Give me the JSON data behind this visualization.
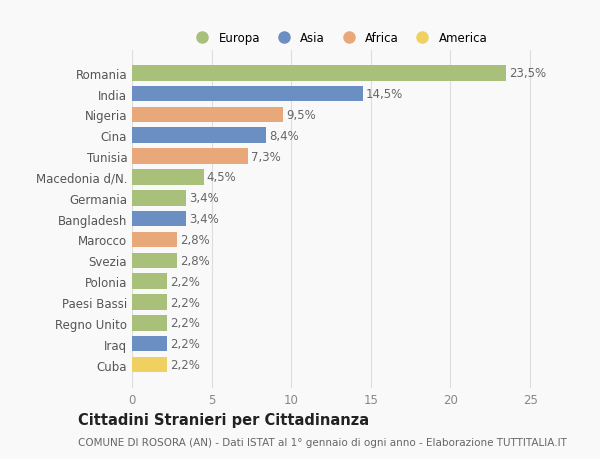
{
  "countries": [
    "Romania",
    "India",
    "Nigeria",
    "Cina",
    "Tunisia",
    "Macedonia d/N.",
    "Germania",
    "Bangladesh",
    "Marocco",
    "Svezia",
    "Polonia",
    "Paesi Bassi",
    "Regno Unito",
    "Iraq",
    "Cuba"
  ],
  "values": [
    23.5,
    14.5,
    9.5,
    8.4,
    7.3,
    4.5,
    3.4,
    3.4,
    2.8,
    2.8,
    2.2,
    2.2,
    2.2,
    2.2,
    2.2
  ],
  "labels": [
    "23,5%",
    "14,5%",
    "9,5%",
    "8,4%",
    "7,3%",
    "4,5%",
    "3,4%",
    "3,4%",
    "2,8%",
    "2,8%",
    "2,2%",
    "2,2%",
    "2,2%",
    "2,2%",
    "2,2%"
  ],
  "colors": [
    "#a8c07a",
    "#6b8fc2",
    "#e8a87a",
    "#6b8fc2",
    "#e8a87a",
    "#a8c07a",
    "#a8c07a",
    "#6b8fc2",
    "#e8a87a",
    "#a8c07a",
    "#a8c07a",
    "#a8c07a",
    "#a8c07a",
    "#6b8fc2",
    "#f0d060"
  ],
  "legend_labels": [
    "Europa",
    "Asia",
    "Africa",
    "America"
  ],
  "legend_colors": [
    "#a8c07a",
    "#6b8fc2",
    "#e8a87a",
    "#f0d060"
  ],
  "title": "Cittadini Stranieri per Cittadinanza",
  "subtitle": "COMUNE DI ROSORA (AN) - Dati ISTAT al 1° gennaio di ogni anno - Elaborazione TUTTITALIA.IT",
  "xlim": [
    0,
    26
  ],
  "xticks": [
    0,
    5,
    10,
    15,
    20,
    25
  ],
  "background_color": "#f9f9f9",
  "grid_color": "#dddddd",
  "bar_height": 0.75,
  "label_fontsize": 8.5,
  "tick_fontsize": 8.5,
  "title_fontsize": 10.5,
  "subtitle_fontsize": 7.5
}
